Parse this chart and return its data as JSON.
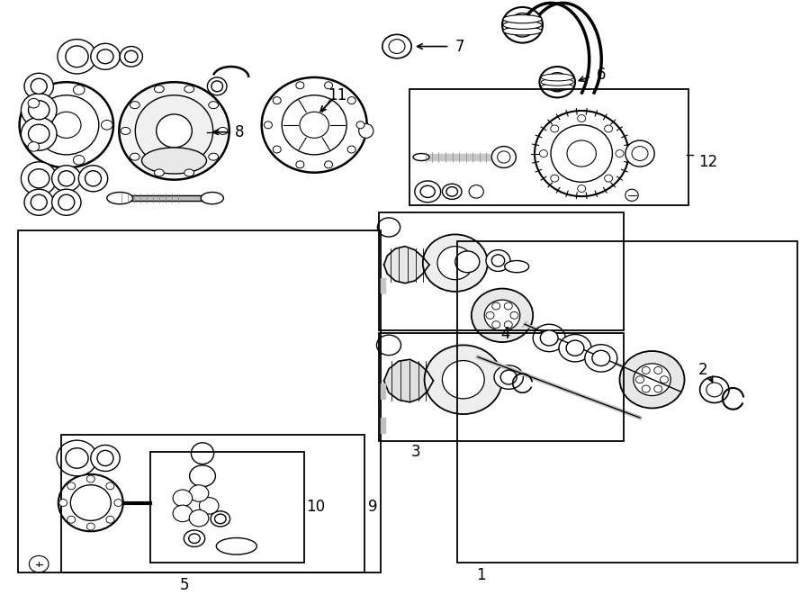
{
  "bg": "#ffffff",
  "fig_w": 9.0,
  "fig_h": 6.61,
  "dpi": 100,
  "boxes": {
    "5": [
      0.022,
      0.038,
      0.445,
      0.575
    ],
    "9": [
      0.075,
      0.038,
      0.375,
      0.225
    ],
    "10": [
      0.185,
      0.055,
      0.19,
      0.185
    ],
    "12": [
      0.505,
      0.655,
      0.345,
      0.195
    ],
    "4": [
      0.468,
      0.445,
      0.3,
      0.195
    ],
    "3": [
      0.468,
      0.265,
      0.3,
      0.175
    ],
    "1": [
      0.565,
      0.055,
      0.42,
      0.535
    ]
  },
  "labels": {
    "1": [
      0.588,
      0.033,
      "1"
    ],
    "2": [
      0.862,
      0.285,
      "2"
    ],
    "3": [
      0.507,
      0.238,
      "3"
    ],
    "4": [
      0.618,
      0.438,
      "4"
    ],
    "5": [
      0.222,
      0.018,
      "5"
    ],
    "6": [
      0.739,
      0.895,
      "6"
    ],
    "7": [
      0.569,
      0.893,
      "7"
    ],
    "8": [
      0.295,
      0.742,
      "8"
    ],
    "9": [
      0.452,
      0.148,
      "9"
    ],
    "10": [
      0.375,
      0.148,
      "10"
    ],
    "11": [
      0.415,
      0.775,
      "11"
    ],
    "12": [
      0.862,
      0.735,
      "12"
    ]
  }
}
